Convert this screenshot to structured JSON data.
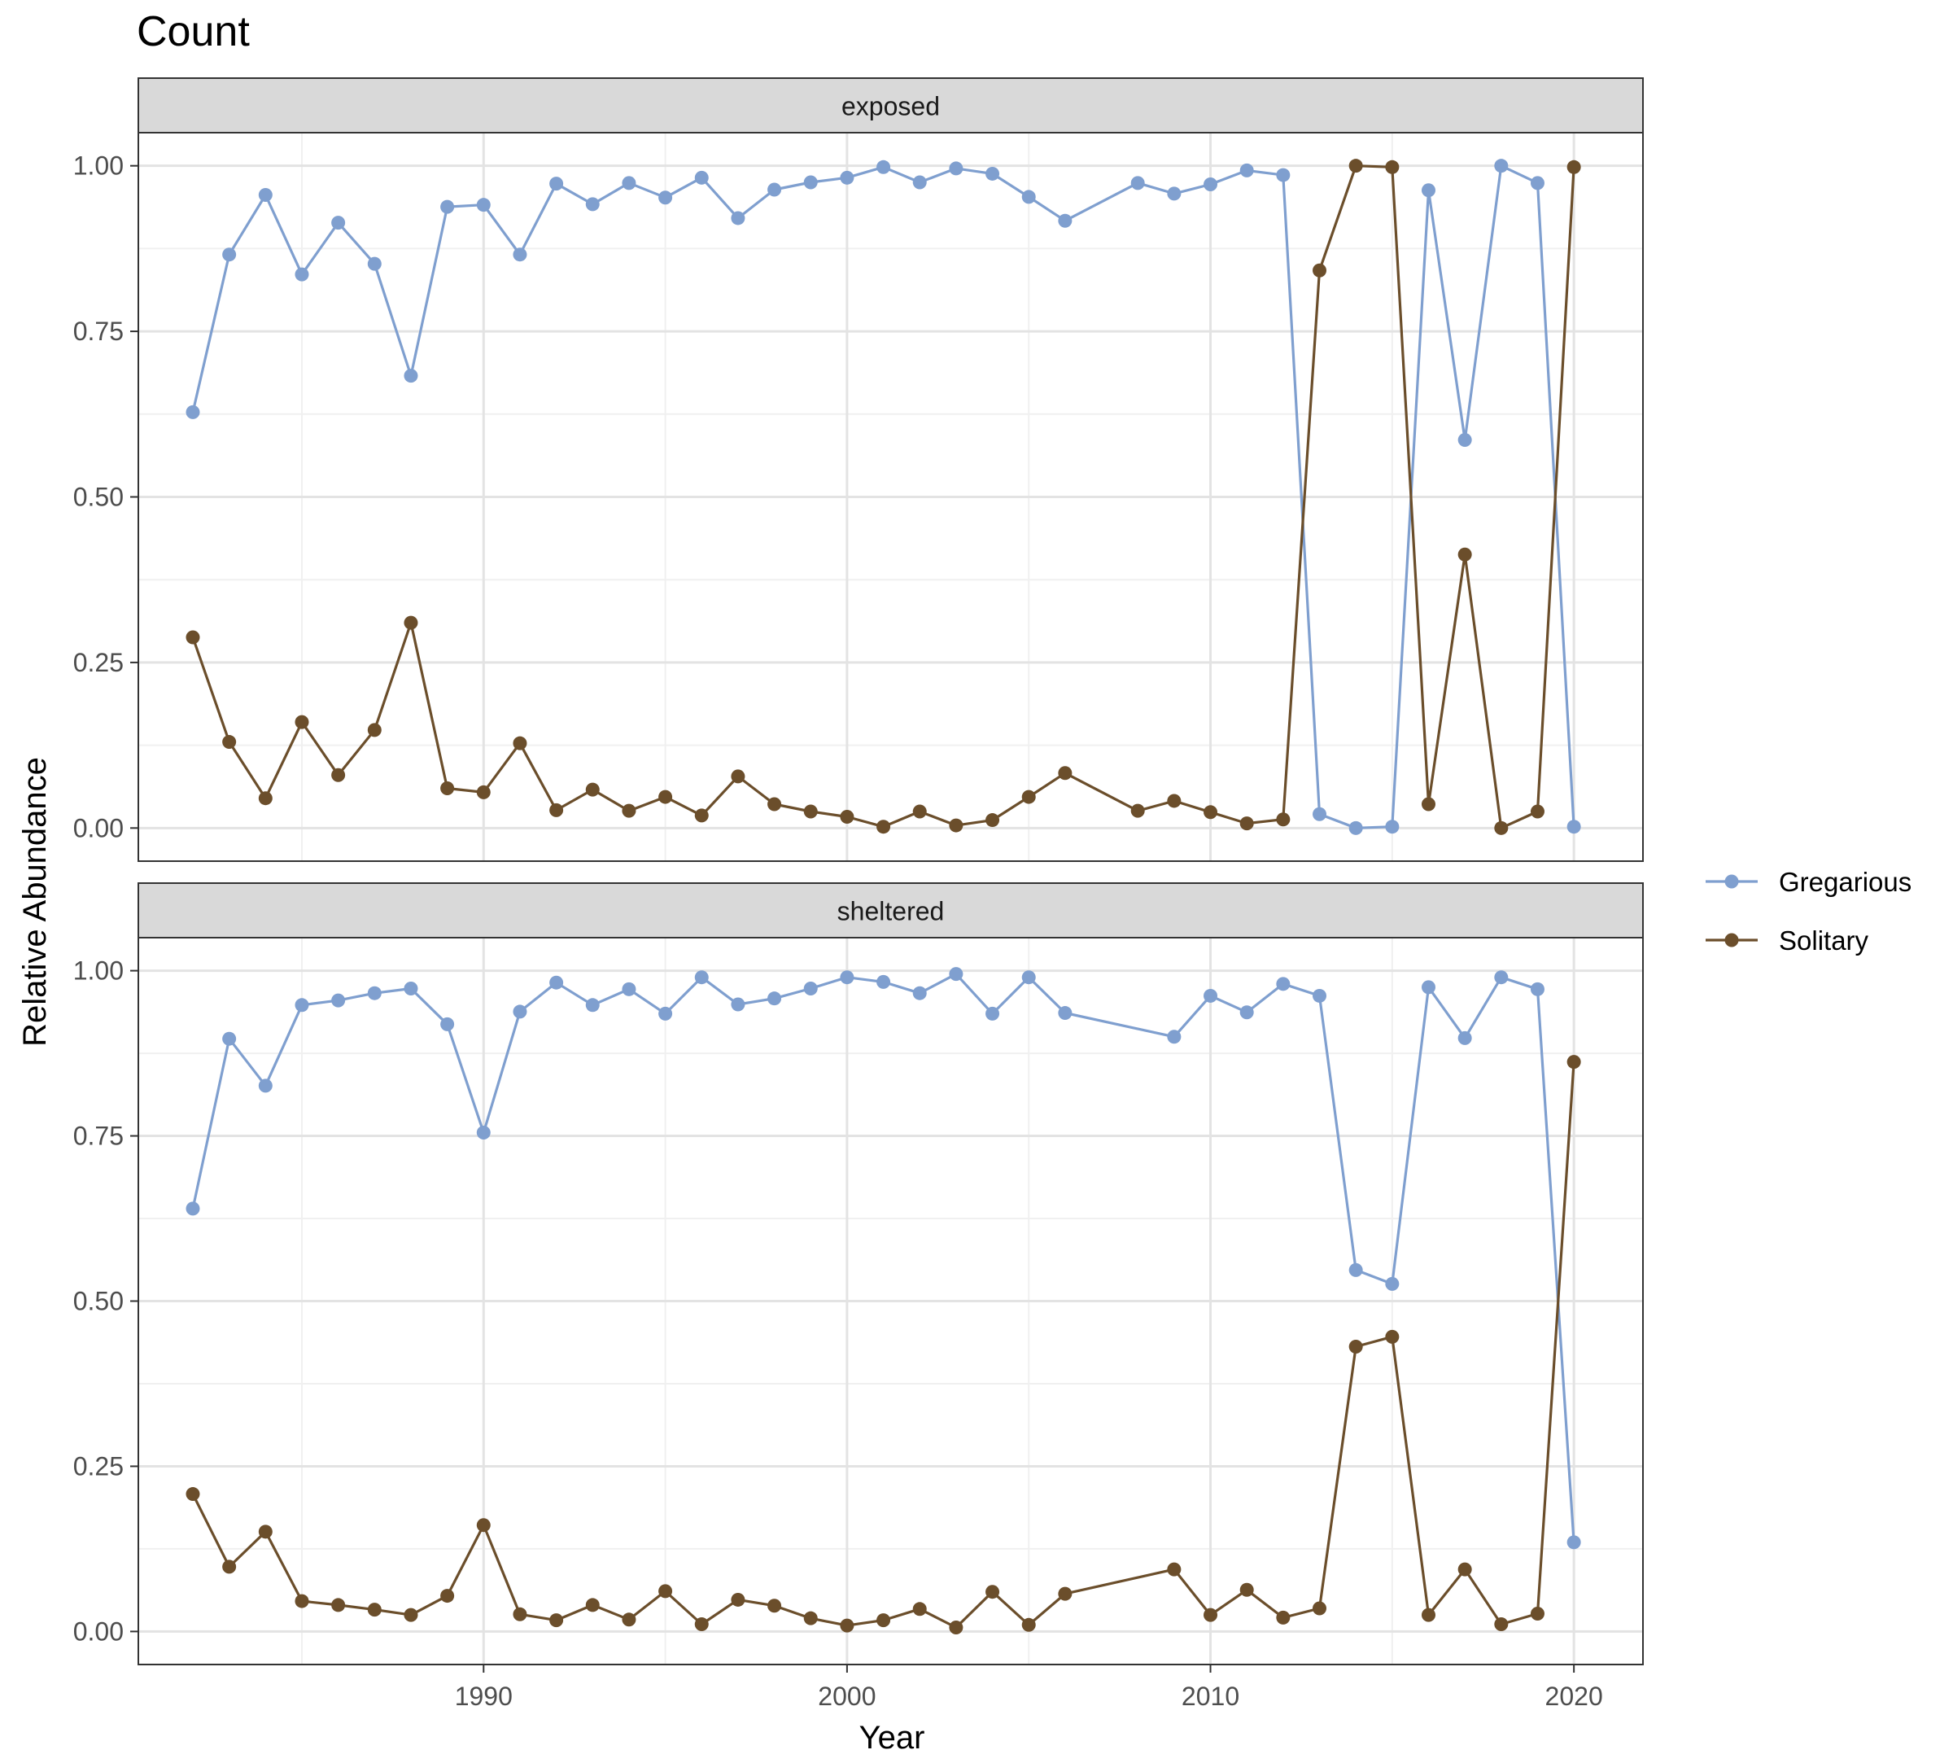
{
  "chart_data": {
    "type": "line",
    "title": "Count",
    "xlabel": "Year",
    "ylabel": "Relative Abundance",
    "xlim": [
      1980.5,
      2021.9
    ],
    "ylim": [
      -0.05,
      1.05
    ],
    "x_ticks": [
      1990,
      2000,
      2010,
      2020
    ],
    "y_ticks": [
      0.0,
      0.25,
      0.5,
      0.75,
      1.0
    ],
    "y_tick_labels": [
      "0.00",
      "0.25",
      "0.50",
      "0.75",
      "1.00"
    ],
    "grid": true,
    "legend_position": "right",
    "series_colors": {
      "Gregarious": "#7f9fcf",
      "Solitary": "#6b4e2b"
    },
    "legend": [
      {
        "name": "Gregarious",
        "color": "#7f9fcf"
      },
      {
        "name": "Solitary",
        "color": "#6b4e2b"
      }
    ],
    "panels": [
      {
        "name": "exposed",
        "series": [
          {
            "name": "Gregarious",
            "x": [
              1982,
              1983,
              1984,
              1985,
              1986,
              1987,
              1988,
              1989,
              1990,
              1991,
              1992,
              1993,
              1994,
              1995,
              1996,
              1997,
              1998,
              1999,
              2000,
              2001,
              2002,
              2003,
              2004,
              2005,
              2006,
              2008,
              2009,
              2010,
              2011,
              2012,
              2013,
              2014,
              2015,
              2016,
              2017,
              2018,
              2019,
              2020
            ],
            "y": [
              0.628,
              0.866,
              0.956,
              0.836,
              0.914,
              0.852,
              0.683,
              0.938,
              0.941,
              0.866,
              0.973,
              0.942,
              0.974,
              0.952,
              0.982,
              0.921,
              0.964,
              0.975,
              0.982,
              0.998,
              0.975,
              0.996,
              0.988,
              0.953,
              0.917,
              0.974,
              0.958,
              0.972,
              0.993,
              0.986,
              0.021,
              0.0,
              0.002,
              0.963,
              0.586,
              1.0,
              0.974,
              0.002
            ]
          },
          {
            "name": "Solitary",
            "x": [
              1982,
              1983,
              1984,
              1985,
              1986,
              1987,
              1988,
              1989,
              1990,
              1991,
              1992,
              1993,
              1994,
              1995,
              1996,
              1997,
              1998,
              1999,
              2000,
              2001,
              2002,
              2003,
              2004,
              2005,
              2006,
              2008,
              2009,
              2010,
              2011,
              2012,
              2013,
              2014,
              2015,
              2016,
              2017,
              2018,
              2019,
              2020
            ],
            "y": [
              0.288,
              0.13,
              0.045,
              0.16,
              0.08,
              0.148,
              0.31,
              0.06,
              0.054,
              0.128,
              0.027,
              0.058,
              0.026,
              0.047,
              0.019,
              0.078,
              0.036,
              0.025,
              0.017,
              0.002,
              0.025,
              0.004,
              0.012,
              0.047,
              0.083,
              0.026,
              0.041,
              0.024,
              0.007,
              0.013,
              0.842,
              1.0,
              0.998,
              0.036,
              0.413,
              0.0,
              0.025,
              0.998
            ]
          }
        ]
      },
      {
        "name": "sheltered",
        "series": [
          {
            "name": "Gregarious",
            "x": [
              1982,
              1983,
              1984,
              1985,
              1986,
              1987,
              1988,
              1989,
              1990,
              1991,
              1992,
              1993,
              1994,
              1995,
              1996,
              1997,
              1998,
              1999,
              2000,
              2001,
              2002,
              2003,
              2004,
              2005,
              2006,
              2009,
              2010,
              2011,
              2012,
              2013,
              2014,
              2015,
              2016,
              2017,
              2018,
              2019,
              2020
            ],
            "y": [
              0.64,
              0.897,
              0.826,
              0.948,
              0.955,
              0.966,
              0.973,
              0.919,
              0.755,
              0.938,
              0.982,
              0.948,
              0.972,
              0.935,
              0.99,
              0.949,
              0.958,
              0.973,
              0.99,
              0.983,
              0.966,
              0.995,
              0.935,
              0.99,
              0.936,
              0.9,
              0.962,
              0.937,
              0.98,
              0.962,
              0.547,
              0.526,
              0.975,
              0.898,
              0.99,
              0.972,
              0.135
            ]
          },
          {
            "name": "Solitary",
            "x": [
              1982,
              1983,
              1984,
              1985,
              1986,
              1987,
              1988,
              1989,
              1990,
              1991,
              1992,
              1993,
              1994,
              1995,
              1996,
              1997,
              1998,
              1999,
              2000,
              2001,
              2002,
              2003,
              2004,
              2005,
              2006,
              2009,
              2010,
              2011,
              2012,
              2013,
              2014,
              2015,
              2016,
              2017,
              2018,
              2019,
              2020
            ],
            "y": [
              0.208,
              0.098,
              0.151,
              0.046,
              0.04,
              0.033,
              0.025,
              0.054,
              0.161,
              0.026,
              0.017,
              0.04,
              0.018,
              0.061,
              0.011,
              0.048,
              0.039,
              0.02,
              0.009,
              0.017,
              0.034,
              0.006,
              0.06,
              0.01,
              0.057,
              0.094,
              0.025,
              0.063,
              0.021,
              0.035,
              0.431,
              0.446,
              0.025,
              0.094,
              0.011,
              0.027,
              0.862
            ]
          }
        ]
      }
    ]
  }
}
